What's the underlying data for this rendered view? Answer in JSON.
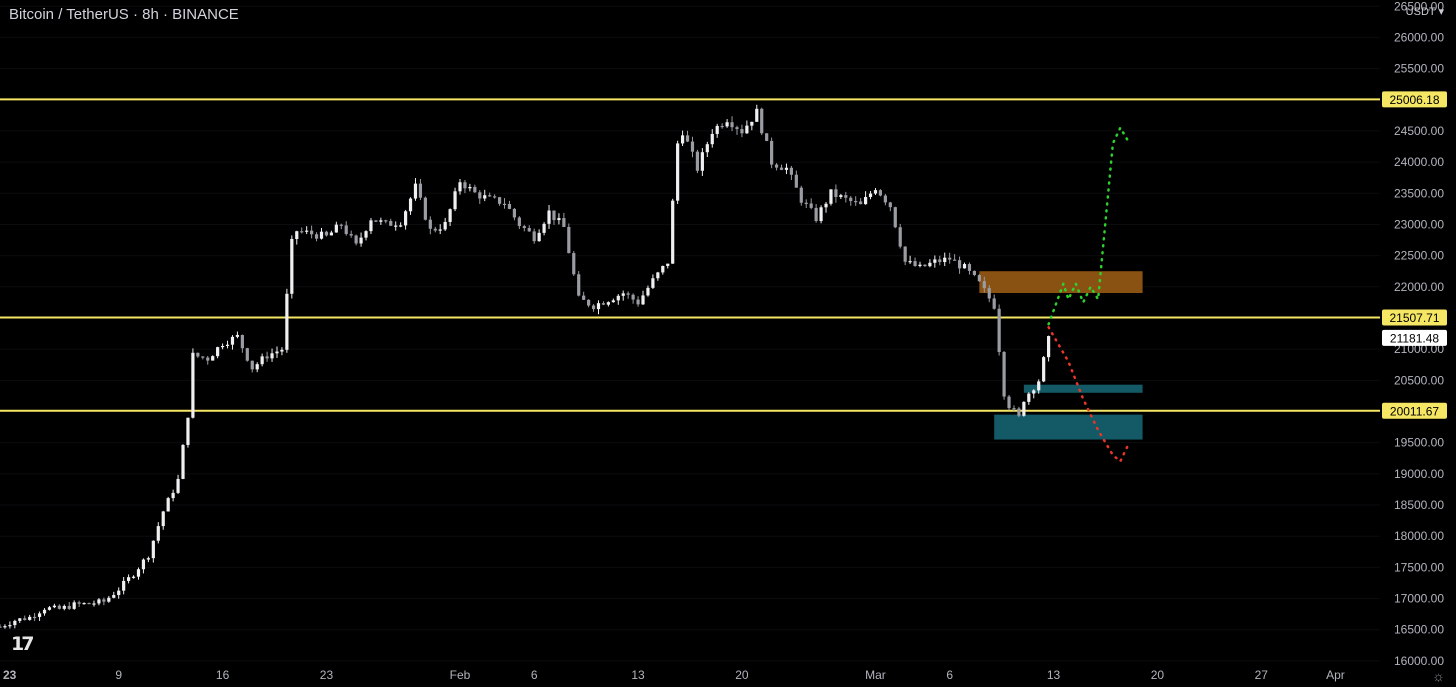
{
  "header": {
    "title": "Bitcoin / TetherUS · 8h · BINANCE",
    "currency": "USDT ▾"
  },
  "logo": "17",
  "chart_data": {
    "type": "candlestick",
    "symbol": "Bitcoin / TetherUS",
    "interval": "8h",
    "exchange": "BINANCE",
    "y_axis": {
      "ticks": [
        16000,
        16500,
        17000,
        17500,
        18000,
        18500,
        19000,
        19500,
        20000,
        20500,
        21000,
        21500,
        22000,
        22500,
        23000,
        23500,
        24000,
        24500,
        25000,
        25500,
        26000,
        26500
      ],
      "tick_labels": [
        "16000.00",
        "16500.00",
        "17000.00",
        "17500.00",
        "18000.00",
        "18500.00",
        "19000.00",
        "19500.00",
        "20000.00",
        "20500.00",
        "21000.00",
        "21500.00",
        "22000.00",
        "22500.00",
        "23000.00",
        "23500.00",
        "24000.00",
        "24500.00",
        "25000.00",
        "25500.00",
        "26000.00",
        "26500.00"
      ],
      "range": [
        15950,
        26600
      ]
    },
    "x_axis": {
      "range": [
        "2023-01-01",
        "2023-04-04"
      ],
      "ticks": [
        {
          "date": "2023-01-02",
          "label": "23"
        },
        {
          "date": "2023-01-09",
          "label": "9"
        },
        {
          "date": "2023-01-16",
          "label": "16"
        },
        {
          "date": "2023-01-23",
          "label": "23"
        },
        {
          "date": "2023-02-01",
          "label": "Feb"
        },
        {
          "date": "2023-02-06",
          "label": "6"
        },
        {
          "date": "2023-02-13",
          "label": "13"
        },
        {
          "date": "2023-02-20",
          "label": "20"
        },
        {
          "date": "2023-03-01",
          "label": "Mar"
        },
        {
          "date": "2023-03-06",
          "label": "6"
        },
        {
          "date": "2023-03-13",
          "label": "13"
        },
        {
          "date": "2023-03-20",
          "label": "20"
        },
        {
          "date": "2023-03-27",
          "label": "27"
        },
        {
          "date": "2023-04-01",
          "label": "Apr"
        }
      ]
    },
    "close_path": [
      [
        "2023-01-01",
        16550
      ],
      [
        "2023-01-02",
        16650
      ],
      [
        "2023-01-03",
        16700
      ],
      [
        "2023-01-04",
        16850
      ],
      [
        "2023-01-05",
        16830
      ],
      [
        "2023-01-06",
        16900
      ],
      [
        "2023-01-07",
        16920
      ],
      [
        "2023-01-08",
        16950
      ],
      [
        "2023-01-09",
        17150
      ],
      [
        "2023-01-10",
        17400
      ],
      [
        "2023-01-11",
        17700
      ],
      [
        "2023-01-12",
        18400
      ],
      [
        "2023-01-13",
        18900
      ],
      [
        "2023-01-13 16:00",
        19950
      ],
      [
        "2023-01-14",
        20900
      ],
      [
        "2023-01-15",
        20850
      ],
      [
        "2023-01-16",
        21100
      ],
      [
        "2023-01-17",
        21200
      ],
      [
        "2023-01-18",
        20700
      ],
      [
        "2023-01-19",
        20900
      ],
      [
        "2023-01-20",
        21000
      ],
      [
        "2023-01-20 16:00",
        22700
      ],
      [
        "2023-01-21",
        22900
      ],
      [
        "2023-01-23",
        22800
      ],
      [
        "2023-01-24",
        23000
      ],
      [
        "2023-01-25",
        22650
      ],
      [
        "2023-01-26",
        23100
      ],
      [
        "2023-01-27",
        23000
      ],
      [
        "2023-01-28",
        23050
      ],
      [
        "2023-01-29",
        23600
      ],
      [
        "2023-01-30",
        22900
      ],
      [
        "2023-01-31",
        23000
      ],
      [
        "2023-02-01",
        23700
      ],
      [
        "2023-02-02",
        23500
      ],
      [
        "2023-02-03",
        23400
      ],
      [
        "2023-02-04",
        23350
      ],
      [
        "2023-02-05",
        23000
      ],
      [
        "2023-02-06",
        22800
      ],
      [
        "2023-02-07",
        23200
      ],
      [
        "2023-02-08",
        22950
      ],
      [
        "2023-02-09",
        21800
      ],
      [
        "2023-02-10",
        21700
      ],
      [
        "2023-02-11",
        21800
      ],
      [
        "2023-02-12",
        21900
      ],
      [
        "2023-02-13",
        21750
      ],
      [
        "2023-02-14",
        22100
      ],
      [
        "2023-02-15",
        22400
      ],
      [
        "2023-02-15 16:00",
        24300
      ],
      [
        "2023-02-16",
        24500
      ],
      [
        "2023-02-17",
        23900
      ],
      [
        "2023-02-18",
        24500
      ],
      [
        "2023-02-19",
        24700
      ],
      [
        "2023-02-20",
        24500
      ],
      [
        "2023-02-21",
        24800
      ],
      [
        "2023-02-22",
        24000
      ],
      [
        "2023-02-23",
        23900
      ],
      [
        "2023-02-24",
        23400
      ],
      [
        "2023-02-25",
        23100
      ],
      [
        "2023-02-26",
        23500
      ],
      [
        "2023-02-27",
        23400
      ],
      [
        "2023-02-28",
        23300
      ],
      [
        "2023-03-01",
        23600
      ],
      [
        "2023-03-02",
        23300
      ],
      [
        "2023-03-03",
        22400
      ],
      [
        "2023-03-04",
        22300
      ],
      [
        "2023-03-05",
        22400
      ],
      [
        "2023-03-06",
        22450
      ],
      [
        "2023-03-07",
        22300
      ],
      [
        "2023-03-08",
        22050
      ],
      [
        "2023-03-09",
        21700
      ],
      [
        "2023-03-09 16:00",
        20300
      ],
      [
        "2023-03-10",
        20100
      ],
      [
        "2023-03-10 16:00",
        19900
      ],
      [
        "2023-03-11",
        20200
      ],
      [
        "2023-03-12",
        20500
      ],
      [
        "2023-03-12 16:00",
        21150
      ]
    ],
    "horizontal_levels": [
      {
        "value": 25006.18,
        "label": "25006.18",
        "color": "#f5e663"
      },
      {
        "value": 21507.71,
        "label": "21507.71",
        "color": "#f5e663"
      },
      {
        "value": 20011.67,
        "label": "20011.67",
        "color": "#f5e663"
      }
    ],
    "last_price": {
      "value": 21181.48,
      "label": "21181.48"
    },
    "zones": [
      {
        "color": "#8a5212",
        "y_range": [
          21900,
          22250
        ],
        "x_range": [
          "2023-03-08",
          "2023-03-19"
        ]
      },
      {
        "color": "#135a66",
        "y_range": [
          20300,
          20430
        ],
        "x_range": [
          "2023-03-11",
          "2023-03-19"
        ]
      },
      {
        "color": "#135a66",
        "y_range": [
          19550,
          19950
        ],
        "x_range": [
          "2023-03-09",
          "2023-03-19"
        ]
      }
    ],
    "projections": [
      {
        "color": "#2fd12f",
        "points": [
          [
            "2023-03-12 16:00",
            21400
          ],
          [
            "2023-03-13 16:00",
            22050
          ],
          [
            "2023-03-14",
            21800
          ],
          [
            "2023-03-14 12:00",
            22050
          ],
          [
            "2023-03-15",
            21750
          ],
          [
            "2023-03-15 12:00",
            22000
          ],
          [
            "2023-03-16",
            21800
          ],
          [
            "2023-03-17",
            24300
          ],
          [
            "2023-03-17 12:00",
            24550
          ],
          [
            "2023-03-18",
            24350
          ]
        ]
      },
      {
        "color": "#e8372a",
        "points": [
          [
            "2023-03-12 16:00",
            21350
          ],
          [
            "2023-03-14",
            20800
          ],
          [
            "2023-03-15",
            20200
          ],
          [
            "2023-03-16",
            19700
          ],
          [
            "2023-03-17",
            19300
          ],
          [
            "2023-03-17 12:00",
            19200
          ],
          [
            "2023-03-18",
            19450
          ]
        ]
      }
    ]
  },
  "colors": {
    "background": "#000000",
    "candle": "#e8e8ec",
    "level_line": "#f5e663",
    "axis_text": "#b2b5be",
    "price_box": "#ffffff"
  },
  "icons": {
    "settings": "gear-icon"
  }
}
